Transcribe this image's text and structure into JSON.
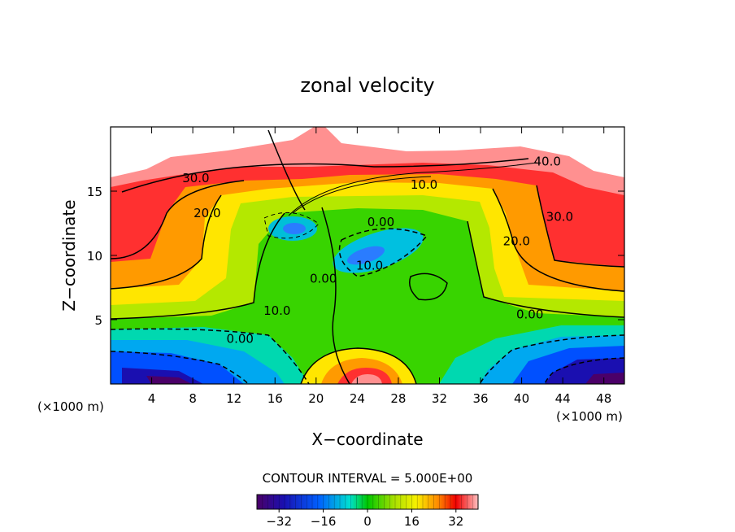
{
  "chart_data": {
    "type": "contour",
    "title": "zonal velocity",
    "xlabel": "X−coordinate",
    "ylabel": "Z−coordinate",
    "x_unit": "(×1000 m)",
    "y_unit": "(×1000 m)",
    "xlim": [
      0,
      50
    ],
    "ylim": [
      0,
      20
    ],
    "x_ticks": [
      4,
      8,
      12,
      16,
      20,
      24,
      28,
      32,
      36,
      40,
      44,
      48
    ],
    "x_tick_labels": [
      "4",
      "8",
      "12",
      "16",
      "20",
      "24",
      "28",
      "32",
      "36",
      "40",
      "44",
      "48"
    ],
    "y_ticks": [
      5,
      10,
      15
    ],
    "y_tick_labels": [
      "5",
      "10",
      "15"
    ],
    "contour_interval_text": "CONTOUR INTERVAL = 5.000E+00",
    "contour_interval": 5,
    "contour_labels": [
      {
        "text": "40.0",
        "x": 42.5,
        "y": 17.3
      },
      {
        "text": "30.0",
        "x": 8.3,
        "y": 16.0
      },
      {
        "text": "10.0",
        "x": 30.5,
        "y": 15.5
      },
      {
        "text": "20.0",
        "x": 9.4,
        "y": 13.3
      },
      {
        "text": "0.00",
        "x": 26.3,
        "y": 12.6
      },
      {
        "text": "30.0",
        "x": 43.7,
        "y": 13.0
      },
      {
        "text": "20.0",
        "x": 39.5,
        "y": 11.1
      },
      {
        "text": "10.0",
        "x": 25.2,
        "y": 9.2
      },
      {
        "text": "0.00",
        "x": 20.7,
        "y": 8.2
      },
      {
        "text": "10.0",
        "x": 16.2,
        "y": 5.7
      },
      {
        "text": "0.00",
        "x": 40.8,
        "y": 5.4
      },
      {
        "text": "0.00",
        "x": 12.6,
        "y": 3.5
      }
    ],
    "colorbar": {
      "min": -40,
      "max": 40,
      "ticks": [
        -32,
        -16,
        0,
        16,
        32
      ],
      "tick_labels": [
        "−32",
        "−16",
        "0",
        "16",
        "32"
      ]
    },
    "features": [
      {
        "kind": "max",
        "approx_value": 40,
        "x": 19.5,
        "y": 19.5
      },
      {
        "kind": "max",
        "approx_value": 40,
        "x": 24.8,
        "y": 0.5
      },
      {
        "kind": "min",
        "approx_value": -10,
        "x": 18.3,
        "y": 12.0
      },
      {
        "kind": "min",
        "approx_value": -10,
        "x": 23.8,
        "y": 10.0
      },
      {
        "kind": "min",
        "approx_value": -40,
        "x": 5.0,
        "y": 0.3
      },
      {
        "kind": "min",
        "approx_value": -40,
        "x": 46.5,
        "y": 0.8
      }
    ]
  }
}
